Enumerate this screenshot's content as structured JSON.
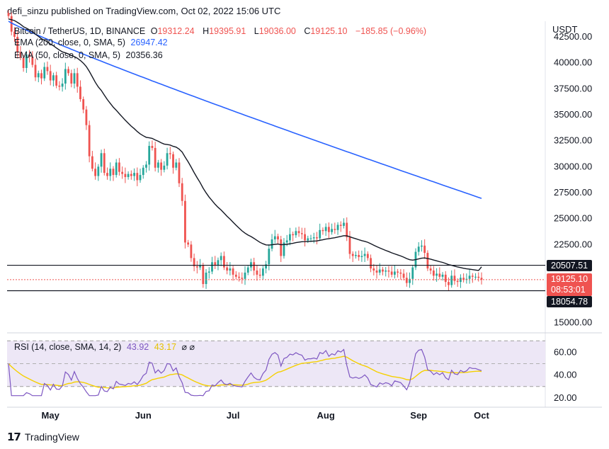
{
  "header": {
    "text": "defi_sinzu published on TradingView.com, Oct 02, 2022 15:06 UTC"
  },
  "footer": {
    "logo_mark": "𝟭𝟳",
    "brand": "TradingView"
  },
  "price_legend": {
    "symbol": "Bitcoin / TetherUS, 1D, BINANCE",
    "open_label": "O",
    "open": "19312.24",
    "high_label": "H",
    "high": "19395.91",
    "low_label": "L",
    "low": "19036.00",
    "close_label": "C",
    "close": "19125.10",
    "change": "−185.85 (−0.96%)"
  },
  "ema200_legend": {
    "label": "EMA (200, close, 0, SMA, 5)",
    "value": "26947.42"
  },
  "ema50_legend": {
    "label": "EMA (50, close, 0, SMA, 5)",
    "value": "20356.36"
  },
  "rsi_legend": {
    "label": "RSI (14, close, SMA, 14, 2)",
    "value1": "43.92",
    "value2": "43.17",
    "icons": "⌀ ⌀"
  },
  "price_axis": {
    "currency": "USDT",
    "ticks": [
      "42500.00",
      "40000.00",
      "37500.00",
      "35000.00",
      "32500.00",
      "30000.00",
      "27500.00",
      "25000.00",
      "22500.00",
      "15000.00"
    ]
  },
  "rsi_axis": {
    "ticks": [
      "60.00",
      "40.00",
      "20.00"
    ]
  },
  "time_axis": {
    "labels": [
      "May",
      "Jun",
      "Jul",
      "Aug",
      "Sep",
      "Oct"
    ]
  },
  "price_tags": {
    "resistance": "20507.51",
    "last_price": "19125.10",
    "countdown": "08:53:01",
    "support": "18054.78"
  },
  "colors": {
    "up": "#26a69a",
    "down": "#ef5350",
    "ema200": "#2962ff",
    "ema50": "#131722",
    "rsi": "#7e57c2",
    "rsi_ma": "#f5d000",
    "rsi_band": "#ede7f6"
  },
  "chart_data": {
    "type": "candlestick",
    "symbol": "BTC/USDT",
    "timeframe": "1D",
    "y_range": [
      14000,
      44000
    ],
    "x_labels": [
      "May",
      "Jun",
      "Jul",
      "Aug",
      "Sep",
      "Oct"
    ],
    "horizontal_levels": [
      20507.51,
      18054.78
    ],
    "last_price": 19125.1,
    "candles_close": [
      44500,
      43000,
      42500,
      41000,
      40500,
      39500,
      40800,
      40600,
      39800,
      38600,
      39000,
      38500,
      39600,
      39200,
      38300,
      38800,
      37800,
      37700,
      38000,
      39400,
      39000,
      38000,
      39000,
      37700,
      36500,
      35500,
      34000,
      31000,
      29800,
      29100,
      30000,
      31300,
      29400,
      29100,
      29800,
      29200,
      30400,
      29500,
      29300,
      29000,
      29300,
      29100,
      29400,
      28700,
      29200,
      29900,
      30200,
      32000,
      31800,
      29900,
      30400,
      29700,
      30100,
      31300,
      31200,
      29900,
      30400,
      28400,
      26700,
      22700,
      22500,
      21200,
      20400,
      20300,
      20500,
      18700,
      19800,
      19900,
      20800,
      20500,
      21000,
      21400,
      20300,
      20000,
      20200,
      19600,
      19400,
      19300,
      19200,
      19800,
      20300,
      20800,
      20000,
      19600,
      19500,
      20200,
      20600,
      22100,
      23000,
      23300,
      23000,
      21400,
      22700,
      22900,
      23500,
      23400,
      23800,
      23600,
      23500,
      22900,
      23100,
      23100,
      23200,
      23100,
      23900,
      23800,
      24200,
      23700,
      24000,
      23900,
      24400,
      24300,
      24600,
      23200,
      21600,
      21400,
      21500,
      21300,
      21400,
      21600,
      21200,
      20200,
      20000,
      19800,
      20100,
      19900,
      20000,
      19900,
      19600,
      19900,
      19800,
      19700,
      19300,
      18800,
      19200,
      20300,
      21800,
      22300,
      22400,
      21700,
      20200,
      20000,
      19500,
      19700,
      19400,
      19600,
      18900,
      18600,
      19500,
      19000,
      18900,
      19300,
      19100,
      19200,
      19500,
      19400,
      19400,
      19300,
      19125
    ],
    "ema200": {
      "start": 44000,
      "end": 26947.42
    },
    "ema50": {
      "end": 20356.36
    },
    "rsi": {
      "y_range": [
        15,
        72
      ],
      "bands": [
        30,
        50,
        70
      ],
      "last": 43.92,
      "ma_last": 43.17
    }
  }
}
